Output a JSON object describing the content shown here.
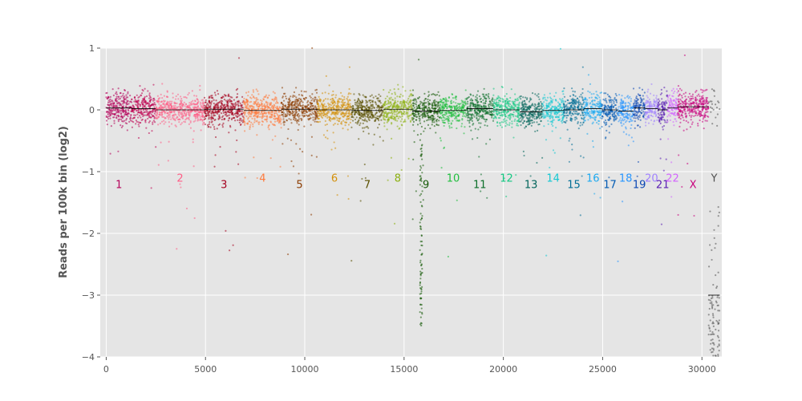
{
  "chart_data": {
    "type": "scatter",
    "title": "",
    "xlabel": "",
    "ylabel": "Reads per 100k bin (log2)",
    "xlim": [
      -300,
      31000
    ],
    "ylim": [
      -4,
      1
    ],
    "x_ticks": [
      0,
      5000,
      10000,
      15000,
      20000,
      25000,
      30000
    ],
    "y_ticks": [
      -4,
      -3,
      -2,
      -1,
      0,
      1
    ],
    "x_tick_labels": [
      "0",
      "5000",
      "10000",
      "15000",
      "20000",
      "25000",
      "30000"
    ],
    "y_tick_labels": [
      "−4",
      "−3",
      "−2",
      "−1",
      "0",
      "1"
    ],
    "grid": true,
    "background": "#e5e5e5",
    "median_line_color": "#000000",
    "series": [
      {
        "name": "1",
        "start": 0,
        "end": 1280,
        "median": 0.03,
        "color": "#b5005a",
        "label_y": -1.2
      },
      {
        "name": "2",
        "start": 1280,
        "end": 2500,
        "median": 0.02,
        "color": "#c00050",
        "label_y": -1.2
      },
      {
        "name": "2",
        "start": 2500,
        "end": 4940,
        "median": 0.0,
        "color": "#ff5f87",
        "label_y": -1.1
      },
      {
        "name": "3",
        "start": 4940,
        "end": 6920,
        "median": 0.01,
        "color": "#a5001e",
        "label_y": -1.2
      },
      {
        "name": "4",
        "start": 6920,
        "end": 8830,
        "median": -0.01,
        "color": "#ff7a3c",
        "label_y": -1.1
      },
      {
        "name": "5",
        "start": 8830,
        "end": 10640,
        "median": 0.01,
        "color": "#8c3c00",
        "label_y": -1.2
      },
      {
        "name": "6",
        "start": 10640,
        "end": 12350,
        "median": 0.0,
        "color": "#d4900a",
        "label_y": -1.1
      },
      {
        "name": "7",
        "start": 12350,
        "end": 13950,
        "median": -0.01,
        "color": "#5a5000",
        "label_y": -1.2
      },
      {
        "name": "8",
        "start": 13950,
        "end": 15410,
        "median": 0.01,
        "color": "#8cb010",
        "label_y": -1.1
      },
      {
        "name": "9",
        "start": 15410,
        "end": 16800,
        "median": -0.02,
        "color": "#145a05",
        "label_y": -1.2
      },
      {
        "name": "10",
        "start": 16800,
        "end": 18140,
        "median": -0.01,
        "color": "#1ebe3c",
        "label_y": -1.1
      },
      {
        "name": "11",
        "start": 18140,
        "end": 19490,
        "median": 0.02,
        "color": "#0a6e28",
        "label_y": -1.2
      },
      {
        "name": "12",
        "start": 19490,
        "end": 20820,
        "median": 0.0,
        "color": "#14c882",
        "label_y": -1.1
      },
      {
        "name": "13",
        "start": 20820,
        "end": 21970,
        "median": -0.03,
        "color": "#00645a",
        "label_y": -1.2
      },
      {
        "name": "14",
        "start": 21970,
        "end": 23040,
        "median": -0.01,
        "color": "#14c8d2",
        "label_y": -1.1
      },
      {
        "name": "15",
        "start": 23040,
        "end": 24060,
        "median": 0.0,
        "color": "#006e96",
        "label_y": -1.2
      },
      {
        "name": "16",
        "start": 24060,
        "end": 24960,
        "median": 0.02,
        "color": "#1eaaf0",
        "label_y": -1.1
      },
      {
        "name": "17",
        "start": 24960,
        "end": 25770,
        "median": 0.0,
        "color": "#005ab4",
        "label_y": -1.2
      },
      {
        "name": "18",
        "start": 25770,
        "end": 26550,
        "median": -0.02,
        "color": "#2896ff",
        "label_y": -1.1
      },
      {
        "name": "19",
        "start": 26550,
        "end": 27140,
        "median": 0.03,
        "color": "#0a46b4",
        "label_y": -1.2
      },
      {
        "name": "20",
        "start": 27140,
        "end": 27780,
        "median": 0.02,
        "color": "#a082ff",
        "label_y": -1.1
      },
      {
        "name": "21",
        "start": 27780,
        "end": 28260,
        "median": 0.0,
        "color": "#5a1eb4",
        "label_y": -1.2
      },
      {
        "name": "22",
        "start": 28260,
        "end": 28770,
        "median": 0.03,
        "color": "#d264ff",
        "label_y": -1.1
      },
      {
        "name": "X",
        "start": 28770,
        "end": 30330,
        "median": 0.05,
        "color": "#c8007d",
        "label_y": -1.2
      },
      {
        "name": "Y",
        "start": 30330,
        "end": 30900,
        "median": -3.0,
        "color": "#505050",
        "label_y": -1.1
      }
    ]
  }
}
